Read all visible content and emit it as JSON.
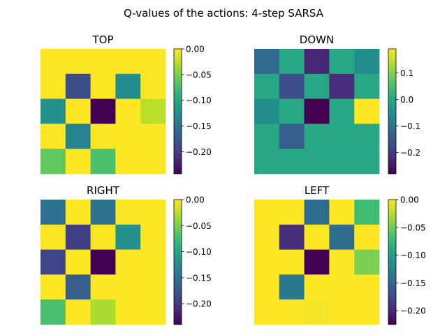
{
  "title": "Q-values of the actions: 4-step SARSA",
  "chart_data": [
    {
      "type": "heatmap",
      "title": "TOP",
      "vmin": -0.243,
      "vmax": 0.0,
      "colorbar_ticks": [
        {
          "value": 0.0,
          "label": "0.00"
        },
        {
          "value": -0.05,
          "label": "−0.05"
        },
        {
          "value": -0.1,
          "label": "−0.10"
        },
        {
          "value": -0.15,
          "label": "−0.15"
        },
        {
          "value": -0.2,
          "label": "−0.20"
        }
      ],
      "values": [
        [
          0.0,
          0.0,
          0.0,
          0.0,
          0.0
        ],
        [
          0.0,
          -0.185,
          0.0,
          -0.125,
          0.0
        ],
        [
          -0.12,
          0.0,
          -0.243,
          0.0,
          -0.025
        ],
        [
          0.0,
          -0.135,
          0.0,
          0.0,
          0.0
        ],
        [
          -0.06,
          0.0,
          -0.07,
          0.0,
          0.0
        ]
      ]
    },
    {
      "type": "heatmap",
      "title": "DOWN",
      "vmin": -0.28,
      "vmax": 0.19,
      "colorbar_ticks": [
        {
          "value": 0.1,
          "label": "0.1"
        },
        {
          "value": 0.0,
          "label": "0.0"
        },
        {
          "value": -0.1,
          "label": "−0.1"
        },
        {
          "value": -0.2,
          "label": "−0.2"
        }
      ],
      "values": [
        [
          -0.12,
          0.0,
          -0.23,
          0.0,
          -0.05
        ],
        [
          0.0,
          -0.17,
          0.0,
          -0.22,
          0.0
        ],
        [
          -0.05,
          0.0,
          -0.28,
          0.0,
          0.19
        ],
        [
          0.0,
          -0.14,
          0.0,
          0.0,
          0.0
        ],
        [
          0.0,
          0.0,
          0.0,
          0.0,
          0.0
        ]
      ]
    },
    {
      "type": "heatmap",
      "title": "RIGHT",
      "vmin": -0.24,
      "vmax": 0.0,
      "colorbar_ticks": [
        {
          "value": 0.0,
          "label": "0.00"
        },
        {
          "value": -0.05,
          "label": "−0.05"
        },
        {
          "value": -0.1,
          "label": "−0.10"
        },
        {
          "value": -0.15,
          "label": "−0.15"
        },
        {
          "value": -0.2,
          "label": "−0.20"
        }
      ],
      "values": [
        [
          -0.15,
          0.0,
          -0.15,
          0.0,
          0.0
        ],
        [
          0.0,
          -0.195,
          0.0,
          -0.12,
          0.0
        ],
        [
          -0.19,
          0.0,
          -0.24,
          0.0,
          0.0
        ],
        [
          0.0,
          -0.17,
          0.0,
          0.0,
          0.0
        ],
        [
          -0.07,
          0.0,
          -0.03,
          0.0,
          0.0
        ]
      ]
    },
    {
      "type": "heatmap",
      "title": "LEFT",
      "vmin": -0.225,
      "vmax": 0.0,
      "colorbar_ticks": [
        {
          "value": 0.0,
          "label": "0.00"
        },
        {
          "value": -0.05,
          "label": "−0.05"
        },
        {
          "value": -0.1,
          "label": "−0.10"
        },
        {
          "value": -0.15,
          "label": "−0.15"
        },
        {
          "value": -0.2,
          "label": "−0.20"
        }
      ],
      "values": [
        [
          0.0,
          0.0,
          -0.145,
          0.0,
          -0.07
        ],
        [
          0.0,
          -0.195,
          0.0,
          -0.145,
          0.0
        ],
        [
          0.0,
          0.0,
          -0.225,
          0.0,
          -0.045
        ],
        [
          0.0,
          -0.135,
          0.0,
          0.0,
          0.0
        ],
        [
          0.0,
          0.0,
          -0.003,
          0.0,
          0.0
        ]
      ]
    }
  ]
}
